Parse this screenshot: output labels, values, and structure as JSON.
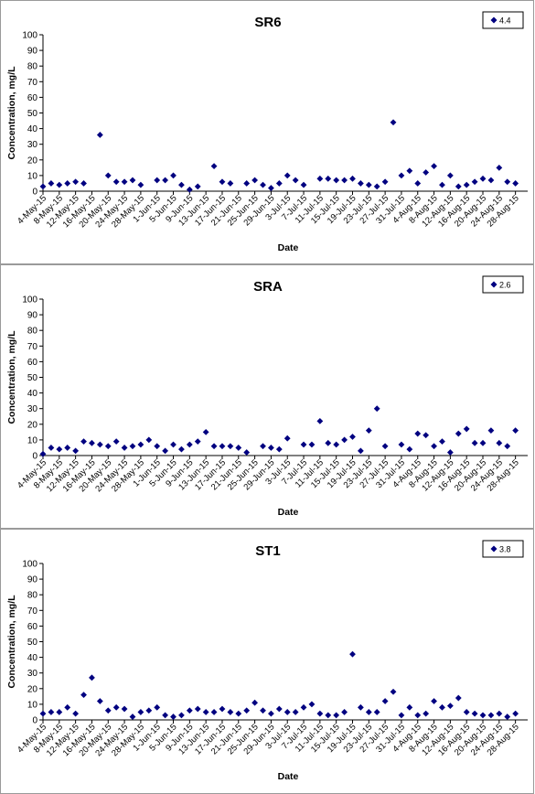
{
  "chart_data": [
    {
      "type": "scatter",
      "title": "SR6",
      "xlabel": "Date",
      "ylabel": "Concentration, mg/L",
      "ylim": [
        0,
        100
      ],
      "yticks": [
        0,
        10,
        20,
        30,
        40,
        50,
        60,
        70,
        80,
        90,
        100
      ],
      "xtick_labels": [
        "4-May-15",
        "8-May-15",
        "12-May-15",
        "16-May-15",
        "20-May-15",
        "24-May-15",
        "28-May-15",
        "1-Jun-15",
        "5-Jun-15",
        "9-Jun-15",
        "13-Jun-15",
        "17-Jun-15",
        "21-Jun-15",
        "25-Jun-15",
        "29-Jun-15",
        "3-Jul-15",
        "7-Jul-15",
        "11-Jul-15",
        "15-Jul-15",
        "19-Jul-15",
        "23-Jul-15",
        "27-Jul-15",
        "31-Jul-15",
        "4-Aug-15",
        "8-Aug-15",
        "12-Aug-15",
        "16-Aug-15",
        "20-Aug-15",
        "24-Aug-15",
        "28-Aug-15"
      ],
      "grid": false,
      "legend_position": "top-right",
      "color": "#000080",
      "marker": "diamond",
      "series": [
        {
          "name": "4.4",
          "x": [
            0,
            1,
            2,
            3,
            4,
            5,
            7,
            8,
            9,
            10,
            11,
            12,
            14,
            15,
            16,
            17,
            18,
            19,
            21,
            22,
            23,
            25,
            26,
            27,
            28,
            29,
            30,
            31,
            32,
            34,
            35,
            36,
            37,
            38,
            39,
            40,
            41,
            42,
            43,
            44,
            45,
            46,
            47,
            48,
            49,
            50,
            51,
            52,
            53,
            54,
            55,
            56,
            57,
            58
          ],
          "y": [
            3,
            5,
            4,
            5,
            6,
            5,
            36,
            10,
            6,
            6,
            7,
            4,
            7,
            7,
            10,
            4,
            1,
            3,
            16,
            6,
            5,
            5,
            7,
            4,
            2,
            5,
            10,
            7,
            4,
            8,
            8,
            7,
            7,
            8,
            5,
            4,
            3,
            6,
            44,
            10,
            13,
            5,
            12,
            16,
            4,
            10,
            3,
            4,
            6,
            8,
            7,
            15,
            6,
            5
          ]
        }
      ]
    },
    {
      "type": "scatter",
      "title": "SRA",
      "xlabel": "Date",
      "ylabel": "Concentration, mg/L",
      "ylim": [
        0,
        100
      ],
      "yticks": [
        0,
        10,
        20,
        30,
        40,
        50,
        60,
        70,
        80,
        90,
        100
      ],
      "xtick_labels": [
        "4-May-15",
        "8-May-15",
        "12-May-15",
        "16-May-15",
        "20-May-15",
        "24-May-15",
        "28-May-15",
        "1-Jun-15",
        "5-Jun-15",
        "9-Jun-15",
        "13-Jun-15",
        "17-Jun-15",
        "21-Jun-15",
        "25-Jun-15",
        "29-Jun-15",
        "3-Jul-15",
        "7-Jul-15",
        "11-Jul-15",
        "15-Jul-15",
        "19-Jul-15",
        "23-Jul-15",
        "27-Jul-15",
        "31-Jul-15",
        "4-Aug-15",
        "8-Aug-15",
        "12-Aug-15",
        "16-Aug-15",
        "20-Aug-15",
        "24-Aug-15",
        "28-Aug-15"
      ],
      "grid": false,
      "legend_position": "top-right",
      "color": "#000080",
      "marker": "diamond",
      "series": [
        {
          "name": "2.6",
          "x": [
            0,
            1,
            2,
            3,
            4,
            5,
            6,
            7,
            8,
            9,
            10,
            11,
            12,
            13,
            14,
            15,
            16,
            17,
            18,
            19,
            20,
            21,
            22,
            23,
            24,
            25,
            27,
            28,
            29,
            30,
            32,
            33,
            34,
            35,
            36,
            37,
            38,
            39,
            40,
            41,
            42,
            44,
            45,
            46,
            47,
            48,
            49,
            50,
            51,
            52,
            53,
            54,
            55,
            56,
            57,
            58
          ],
          "y": [
            1,
            5,
            4,
            5,
            3,
            9,
            8,
            7,
            6,
            9,
            5,
            6,
            7,
            10,
            6,
            3,
            7,
            4,
            7,
            9,
            15,
            6,
            6,
            6,
            5,
            2,
            6,
            5,
            4,
            11,
            7,
            7,
            22,
            8,
            7,
            10,
            12,
            3,
            16,
            30,
            6,
            7,
            4,
            14,
            13,
            6,
            9,
            2,
            14,
            17,
            8,
            8,
            16,
            8,
            6,
            16
          ]
        }
      ]
    },
    {
      "type": "scatter",
      "title": "ST1",
      "xlabel": "Date",
      "ylabel": "Concentration, mg/L",
      "ylim": [
        0,
        100
      ],
      "yticks": [
        0,
        10,
        20,
        30,
        40,
        50,
        60,
        70,
        80,
        90,
        100
      ],
      "xtick_labels": [
        "4-May-15",
        "8-May-15",
        "12-May-15",
        "16-May-15",
        "20-May-15",
        "24-May-15",
        "28-May-15",
        "1-Jun-15",
        "5-Jun-15",
        "9-Jun-15",
        "13-Jun-15",
        "17-Jun-15",
        "21-Jun-15",
        "25-Jun-15",
        "29-Jun-15",
        "3-Jul-15",
        "7-Jul-15",
        "11-Jul-15",
        "15-Jul-15",
        "19-Jul-15",
        "23-Jul-15",
        "27-Jul-15",
        "31-Jul-15",
        "4-Aug-15",
        "8-Aug-15",
        "12-Aug-15",
        "16-Aug-15",
        "20-Aug-15",
        "24-Aug-15",
        "28-Aug-15"
      ],
      "grid": false,
      "legend_position": "top-right",
      "color": "#000080",
      "marker": "diamond",
      "series": [
        {
          "name": "3.8",
          "x": [
            0,
            1,
            2,
            3,
            4,
            5,
            6,
            7,
            8,
            9,
            10,
            11,
            12,
            13,
            14,
            15,
            16,
            17,
            18,
            19,
            20,
            21,
            22,
            23,
            24,
            25,
            26,
            27,
            28,
            29,
            30,
            31,
            32,
            33,
            34,
            35,
            36,
            37,
            38,
            39,
            40,
            41,
            42,
            43,
            44,
            45,
            46,
            47,
            48,
            49,
            50,
            51,
            52,
            53,
            54,
            55,
            56,
            57,
            58
          ],
          "y": [
            4,
            5,
            5,
            8,
            4,
            16,
            27,
            12,
            6,
            8,
            7,
            2,
            5,
            6,
            8,
            3,
            2,
            3,
            6,
            7,
            5,
            5,
            7,
            5,
            4,
            6,
            11,
            6,
            4,
            7,
            5,
            5,
            8,
            10,
            4,
            3,
            3,
            5,
            42,
            8,
            5,
            5,
            12,
            18,
            3,
            8,
            3,
            4,
            12,
            8,
            9,
            14,
            5,
            4,
            3,
            3,
            4,
            2,
            4
          ]
        }
      ]
    }
  ]
}
